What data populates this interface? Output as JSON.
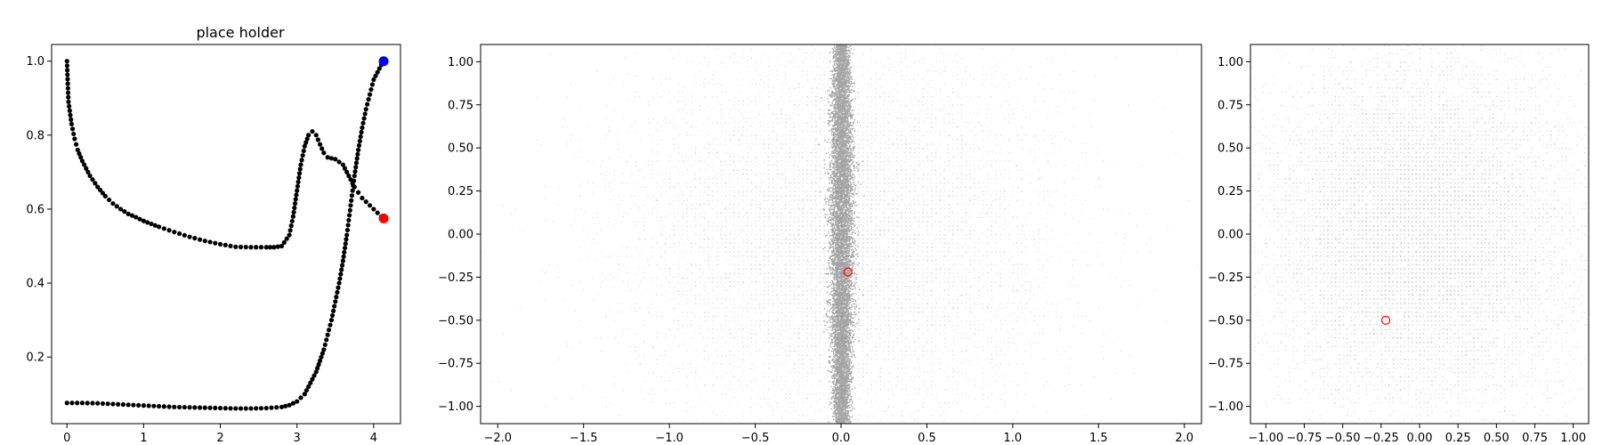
{
  "chart_data": [
    {
      "type": "scatter",
      "title": "place holder",
      "xlabel": "",
      "ylabel": "",
      "xlim": [
        -0.2,
        4.35
      ],
      "ylim": [
        0.02,
        1.045
      ],
      "xticks": [
        "0",
        "1",
        "2",
        "3",
        "4"
      ],
      "yticks": [
        "0.2",
        "0.4",
        "0.6",
        "0.8",
        "1.0"
      ],
      "grid": false,
      "series": [
        {
          "color": "#000000",
          "points": [
            [
              0.0,
              1.0
            ],
            [
              0.02,
              0.89
            ],
            [
              0.06,
              0.83
            ],
            [
              0.1,
              0.79
            ],
            [
              0.14,
              0.76
            ],
            [
              0.2,
              0.73
            ],
            [
              0.3,
              0.69
            ],
            [
              0.4,
              0.66
            ],
            [
              0.5,
              0.635
            ],
            [
              0.6,
              0.615
            ],
            [
              0.7,
              0.6
            ],
            [
              0.8,
              0.587
            ],
            [
              0.9,
              0.578
            ],
            [
              1.0,
              0.568
            ],
            [
              1.2,
              0.552
            ],
            [
              1.4,
              0.538
            ],
            [
              1.6,
              0.525
            ],
            [
              1.8,
              0.514
            ],
            [
              2.0,
              0.505
            ],
            [
              2.2,
              0.498
            ],
            [
              2.4,
              0.497
            ],
            [
              2.6,
              0.497
            ],
            [
              2.7,
              0.497
            ],
            [
              2.8,
              0.5
            ],
            [
              2.9,
              0.53
            ],
            [
              2.95,
              0.58
            ],
            [
              3.0,
              0.65
            ],
            [
              3.05,
              0.72
            ],
            [
              3.1,
              0.77
            ],
            [
              3.15,
              0.8
            ],
            [
              3.2,
              0.81
            ],
            [
              3.25,
              0.8
            ],
            [
              3.3,
              0.775
            ],
            [
              3.35,
              0.752
            ],
            [
              3.4,
              0.74
            ],
            [
              3.5,
              0.735
            ],
            [
              3.6,
              0.72
            ],
            [
              3.65,
              0.7
            ],
            [
              3.7,
              0.68
            ],
            [
              3.75,
              0.66
            ],
            [
              3.8,
              0.645
            ],
            [
              3.85,
              0.63
            ],
            [
              3.9,
              0.62
            ],
            [
              3.95,
              0.61
            ],
            [
              4.0,
              0.6
            ],
            [
              4.05,
              0.59
            ],
            [
              4.1,
              0.58
            ],
            [
              0.0,
              0.076
            ],
            [
              0.2,
              0.076
            ],
            [
              0.4,
              0.075
            ],
            [
              0.6,
              0.073
            ],
            [
              0.8,
              0.071
            ],
            [
              1.0,
              0.069
            ],
            [
              1.2,
              0.067
            ],
            [
              1.4,
              0.065
            ],
            [
              1.6,
              0.064
            ],
            [
              1.8,
              0.063
            ],
            [
              2.0,
              0.062
            ],
            [
              2.2,
              0.061
            ],
            [
              2.4,
              0.061
            ],
            [
              2.6,
              0.062
            ],
            [
              2.8,
              0.065
            ],
            [
              2.9,
              0.07
            ],
            [
              3.0,
              0.08
            ],
            [
              3.1,
              0.1
            ],
            [
              3.15,
              0.12
            ],
            [
              3.2,
              0.14
            ],
            [
              3.25,
              0.16
            ],
            [
              3.3,
              0.19
            ],
            [
              3.35,
              0.22
            ],
            [
              3.4,
              0.26
            ],
            [
              3.45,
              0.3
            ],
            [
              3.5,
              0.35
            ],
            [
              3.55,
              0.4
            ],
            [
              3.6,
              0.46
            ],
            [
              3.65,
              0.53
            ],
            [
              3.7,
              0.61
            ],
            [
              3.75,
              0.69
            ],
            [
              3.8,
              0.76
            ],
            [
              3.85,
              0.82
            ],
            [
              3.9,
              0.87
            ],
            [
              3.95,
              0.91
            ],
            [
              4.0,
              0.95
            ],
            [
              4.05,
              0.97
            ],
            [
              4.1,
              0.99
            ]
          ]
        },
        {
          "color": "#0000ff",
          "points": [
            [
              4.13,
              1.0
            ]
          ]
        },
        {
          "color": "#ff0000",
          "points": [
            [
              4.13,
              0.575
            ]
          ]
        }
      ]
    },
    {
      "type": "scatter",
      "title": "",
      "xlabel": "",
      "ylabel": "",
      "xlim": [
        -2.1,
        2.1
      ],
      "ylim": [
        -1.1,
        1.1
      ],
      "xticks": [
        "−2.0",
        "−1.5",
        "−1.0",
        "−0.5",
        "0.0",
        "0.5",
        "1.0",
        "1.5",
        "2.0"
      ],
      "yticks": [
        "−1.00",
        "−0.75",
        "−0.50",
        "−0.25",
        "0.00",
        "0.25",
        "0.50",
        "0.75",
        "1.00"
      ],
      "grid": false,
      "cloud_color": "#000000",
      "highlight": {
        "x": 0.04,
        "y": -0.22,
        "color": "#ff0000"
      }
    },
    {
      "type": "scatter",
      "title": "",
      "xlabel": "",
      "ylabel": "",
      "xlim": [
        -1.1,
        1.1
      ],
      "ylim": [
        -1.1,
        1.1
      ],
      "xticks": [
        "−1.00",
        "−0.75",
        "−0.50",
        "−0.25",
        "0.00",
        "0.25",
        "0.50",
        "0.75",
        "1.00"
      ],
      "yticks": [
        "−1.00",
        "−0.75",
        "−0.50",
        "−0.25",
        "0.00",
        "0.25",
        "0.50",
        "0.75",
        "1.00"
      ],
      "grid": false,
      "cloud_color": "#000000",
      "highlight": {
        "x": -0.22,
        "y": -0.5,
        "color": "#ff0000"
      }
    }
  ]
}
